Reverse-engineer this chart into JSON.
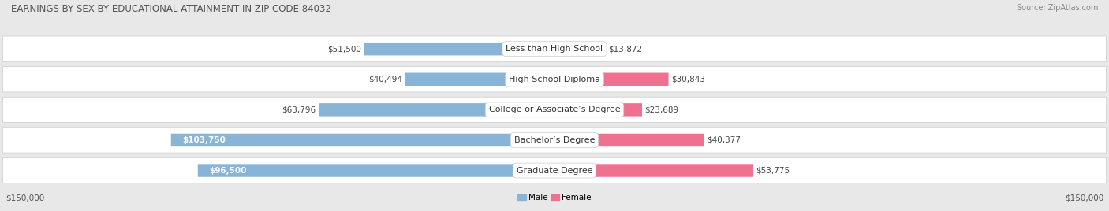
{
  "title": "EARNINGS BY SEX BY EDUCATIONAL ATTAINMENT IN ZIP CODE 84032",
  "source": "Source: ZipAtlas.com",
  "categories": [
    "Less than High School",
    "High School Diploma",
    "College or Associate’s Degree",
    "Bachelor’s Degree",
    "Graduate Degree"
  ],
  "male_values": [
    51500,
    40494,
    63796,
    103750,
    96500
  ],
  "female_values": [
    13872,
    30843,
    23689,
    40377,
    53775
  ],
  "male_color": "#88b4d8",
  "female_color": "#f07090",
  "max_value": 150000,
  "bg_color": "#e8e8e8",
  "row_bg": "#f5f5f5",
  "title_fontsize": 8.5,
  "source_fontsize": 7.0,
  "label_fontsize": 7.5,
  "category_fontsize": 8.0,
  "axis_label_fontsize": 7.5
}
